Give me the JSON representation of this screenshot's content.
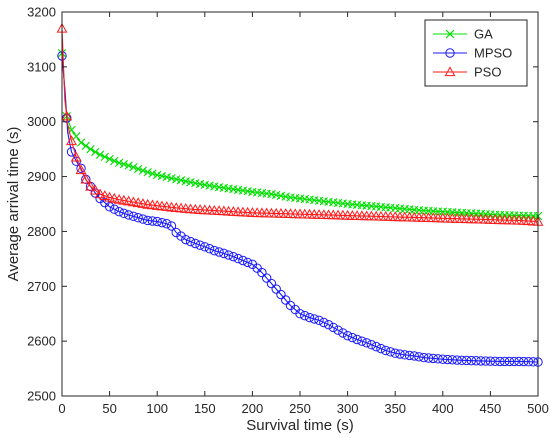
{
  "chart_data": {
    "type": "line",
    "title": "",
    "xlabel": "Survival time (s)",
    "ylabel": "Average arrival time (s)",
    "xlim": [
      0,
      500
    ],
    "ylim": [
      2500,
      3200
    ],
    "xticks": [
      0,
      50,
      100,
      150,
      200,
      250,
      300,
      350,
      400,
      450,
      500
    ],
    "yticks": [
      2500,
      2600,
      2700,
      2800,
      2900,
      3000,
      3100,
      3200
    ],
    "grid": false,
    "legend_position": "top-right",
    "series": [
      {
        "name": "GA",
        "color": "#00e000",
        "marker": "x",
        "x": [
          0,
          5,
          10,
          20,
          30,
          40,
          50,
          60,
          70,
          80,
          90,
          100,
          120,
          140,
          160,
          180,
          200,
          220,
          240,
          260,
          280,
          300,
          320,
          340,
          360,
          380,
          400,
          420,
          440,
          460,
          480,
          500
        ],
        "y": [
          3125,
          3010,
          2985,
          2962,
          2950,
          2940,
          2932,
          2925,
          2920,
          2914,
          2908,
          2903,
          2895,
          2888,
          2882,
          2877,
          2872,
          2868,
          2862,
          2858,
          2854,
          2850,
          2847,
          2844,
          2841,
          2838,
          2836,
          2834,
          2832,
          2830,
          2829,
          2828
        ]
      },
      {
        "name": "MPSO",
        "color": "#1a1aff",
        "marker": "o",
        "x": [
          0,
          3,
          6,
          10,
          15,
          20,
          25,
          30,
          35,
          40,
          50,
          60,
          70,
          80,
          90,
          100,
          110,
          115,
          120,
          130,
          140,
          150,
          160,
          170,
          180,
          190,
          200,
          205,
          210,
          215,
          220,
          225,
          230,
          240,
          250,
          260,
          270,
          280,
          290,
          300,
          310,
          320,
          330,
          340,
          350,
          360,
          370,
          380,
          400,
          420,
          440,
          460,
          480,
          500
        ],
        "y": [
          3120,
          3060,
          2980,
          2945,
          2928,
          2915,
          2895,
          2882,
          2870,
          2860,
          2845,
          2836,
          2830,
          2825,
          2820,
          2818,
          2814,
          2810,
          2798,
          2785,
          2778,
          2772,
          2765,
          2760,
          2754,
          2747,
          2740,
          2733,
          2725,
          2715,
          2705,
          2695,
          2685,
          2665,
          2650,
          2643,
          2638,
          2630,
          2620,
          2610,
          2603,
          2597,
          2590,
          2583,
          2578,
          2575,
          2573,
          2570,
          2567,
          2565,
          2564,
          2563,
          2563,
          2562
        ]
      },
      {
        "name": "PSO",
        "color": "#ff1a1a",
        "marker": "triangle",
        "x": [
          0,
          3,
          6,
          10,
          15,
          20,
          25,
          30,
          40,
          50,
          60,
          70,
          80,
          90,
          100,
          120,
          140,
          160,
          180,
          200,
          220,
          240,
          260,
          280,
          300,
          320,
          340,
          360,
          380,
          400,
          420,
          440,
          460,
          480,
          500
        ],
        "y": [
          3170,
          3040,
          2995,
          2965,
          2935,
          2912,
          2895,
          2882,
          2868,
          2862,
          2858,
          2855,
          2852,
          2849,
          2847,
          2843,
          2840,
          2838,
          2836,
          2834,
          2833,
          2832,
          2831,
          2830,
          2829,
          2828,
          2827,
          2826,
          2825,
          2824,
          2823,
          2822,
          2821,
          2820,
          2818
        ]
      }
    ]
  }
}
